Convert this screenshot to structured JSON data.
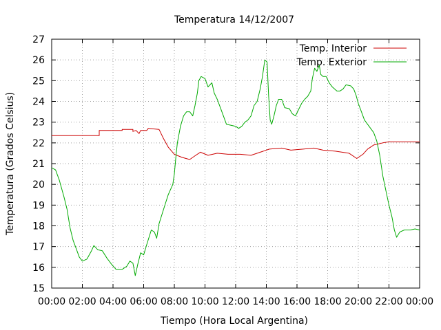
{
  "chart_data": {
    "type": "line",
    "title": "Temperatura 14/12/2007",
    "xlabel": "Tiempo (Hora Local Argentina)",
    "ylabel": "Temperatura (Grados Celsius)",
    "xlim": [
      0,
      24
    ],
    "ylim": [
      15,
      27
    ],
    "x_tick_labels": [
      "00:00",
      "02:00",
      "04:00",
      "06:00",
      "08:00",
      "10:00",
      "12:00",
      "14:00",
      "16:00",
      "18:00",
      "20:00",
      "22:00",
      "00:00"
    ],
    "y_ticks": [
      15,
      16,
      17,
      18,
      19,
      20,
      21,
      22,
      23,
      24,
      25,
      26,
      27
    ],
    "grid": true,
    "legend_position": "top-right",
    "series": [
      {
        "name": "Temp. Interior",
        "color": "#cc0000",
        "points": [
          [
            0,
            22.35
          ],
          [
            3.1,
            22.35
          ],
          [
            3.1,
            22.6
          ],
          [
            4.6,
            22.6
          ],
          [
            4.6,
            22.65
          ],
          [
            5.3,
            22.65
          ],
          [
            5.3,
            22.55
          ],
          [
            5.5,
            22.6
          ],
          [
            5.7,
            22.45
          ],
          [
            5.8,
            22.6
          ],
          [
            6.2,
            22.6
          ],
          [
            6.3,
            22.7
          ],
          [
            7.0,
            22.65
          ],
          [
            7.3,
            22.2
          ],
          [
            7.6,
            21.8
          ],
          [
            8.0,
            21.45
          ],
          [
            8.5,
            21.3
          ],
          [
            9.0,
            21.2
          ],
          [
            9.4,
            21.4
          ],
          [
            9.7,
            21.55
          ],
          [
            10.2,
            21.4
          ],
          [
            10.8,
            21.5
          ],
          [
            11.5,
            21.45
          ],
          [
            12.3,
            21.45
          ],
          [
            13.0,
            21.4
          ],
          [
            13.6,
            21.55
          ],
          [
            14.2,
            21.7
          ],
          [
            15.0,
            21.75
          ],
          [
            15.6,
            21.65
          ],
          [
            16.4,
            21.7
          ],
          [
            17.1,
            21.75
          ],
          [
            17.7,
            21.65
          ],
          [
            18.5,
            21.6
          ],
          [
            19.4,
            21.5
          ],
          [
            19.9,
            21.25
          ],
          [
            20.3,
            21.45
          ],
          [
            20.6,
            21.7
          ],
          [
            21.0,
            21.9
          ],
          [
            21.6,
            22.0
          ],
          [
            22.0,
            22.05
          ],
          [
            24,
            22.05
          ]
        ]
      },
      {
        "name": "Temp. Exterior",
        "color": "#00aa00",
        "points": [
          [
            0,
            20.8
          ],
          [
            0.25,
            20.7
          ],
          [
            0.5,
            20.2
          ],
          [
            0.8,
            19.4
          ],
          [
            1.0,
            18.8
          ],
          [
            1.2,
            17.9
          ],
          [
            1.4,
            17.3
          ],
          [
            1.6,
            16.9
          ],
          [
            1.8,
            16.5
          ],
          [
            2.0,
            16.3
          ],
          [
            2.3,
            16.4
          ],
          [
            2.6,
            16.8
          ],
          [
            2.75,
            17.05
          ],
          [
            3.0,
            16.85
          ],
          [
            3.3,
            16.8
          ],
          [
            3.6,
            16.45
          ],
          [
            3.9,
            16.15
          ],
          [
            4.2,
            15.9
          ],
          [
            4.6,
            15.9
          ],
          [
            4.9,
            16.05
          ],
          [
            5.1,
            16.3
          ],
          [
            5.3,
            16.2
          ],
          [
            5.45,
            15.6
          ],
          [
            5.6,
            16.1
          ],
          [
            5.8,
            16.7
          ],
          [
            6.0,
            16.6
          ],
          [
            6.2,
            17.1
          ],
          [
            6.5,
            17.8
          ],
          [
            6.7,
            17.7
          ],
          [
            6.85,
            17.4
          ],
          [
            7.0,
            18.1
          ],
          [
            7.3,
            18.8
          ],
          [
            7.6,
            19.5
          ],
          [
            7.9,
            20.0
          ],
          [
            8.0,
            20.5
          ],
          [
            8.1,
            21.3
          ],
          [
            8.2,
            22.0
          ],
          [
            8.4,
            22.8
          ],
          [
            8.6,
            23.3
          ],
          [
            8.8,
            23.5
          ],
          [
            9.0,
            23.5
          ],
          [
            9.2,
            23.3
          ],
          [
            9.35,
            23.8
          ],
          [
            9.5,
            24.4
          ],
          [
            9.6,
            25.0
          ],
          [
            9.75,
            25.2
          ],
          [
            10.0,
            25.1
          ],
          [
            10.2,
            24.7
          ],
          [
            10.45,
            24.9
          ],
          [
            10.6,
            24.4
          ],
          [
            10.8,
            24.1
          ],
          [
            11.0,
            23.7
          ],
          [
            11.2,
            23.3
          ],
          [
            11.4,
            22.9
          ],
          [
            11.7,
            22.85
          ],
          [
            12.0,
            22.8
          ],
          [
            12.2,
            22.7
          ],
          [
            12.4,
            22.8
          ],
          [
            12.6,
            23.0
          ],
          [
            12.8,
            23.1
          ],
          [
            13.0,
            23.3
          ],
          [
            13.2,
            23.8
          ],
          [
            13.4,
            24.0
          ],
          [
            13.6,
            24.6
          ],
          [
            13.75,
            25.2
          ],
          [
            13.9,
            26.0
          ],
          [
            14.05,
            25.9
          ],
          [
            14.15,
            24.3
          ],
          [
            14.25,
            23.1
          ],
          [
            14.35,
            22.9
          ],
          [
            14.5,
            23.3
          ],
          [
            14.65,
            23.8
          ],
          [
            14.8,
            24.1
          ],
          [
            15.0,
            24.1
          ],
          [
            15.2,
            23.7
          ],
          [
            15.5,
            23.65
          ],
          [
            15.7,
            23.4
          ],
          [
            15.9,
            23.3
          ],
          [
            16.1,
            23.6
          ],
          [
            16.3,
            23.9
          ],
          [
            16.5,
            24.1
          ],
          [
            16.7,
            24.25
          ],
          [
            16.9,
            24.5
          ],
          [
            17.0,
            25.1
          ],
          [
            17.15,
            25.6
          ],
          [
            17.3,
            25.45
          ],
          [
            17.45,
            25.75
          ],
          [
            17.55,
            25.3
          ],
          [
            17.7,
            25.2
          ],
          [
            17.9,
            25.2
          ],
          [
            18.1,
            24.9
          ],
          [
            18.3,
            24.7
          ],
          [
            18.6,
            24.5
          ],
          [
            18.8,
            24.5
          ],
          [
            19.0,
            24.6
          ],
          [
            19.2,
            24.8
          ],
          [
            19.5,
            24.75
          ],
          [
            19.7,
            24.6
          ],
          [
            19.85,
            24.3
          ],
          [
            20.0,
            23.9
          ],
          [
            20.2,
            23.5
          ],
          [
            20.4,
            23.1
          ],
          [
            20.7,
            22.8
          ],
          [
            21.0,
            22.5
          ],
          [
            21.2,
            22.1
          ],
          [
            21.4,
            21.4
          ],
          [
            21.6,
            20.4
          ],
          [
            21.8,
            19.7
          ],
          [
            22.0,
            19.0
          ],
          [
            22.2,
            18.4
          ],
          [
            22.35,
            17.8
          ],
          [
            22.5,
            17.45
          ],
          [
            22.7,
            17.7
          ],
          [
            23.0,
            17.8
          ],
          [
            23.4,
            17.8
          ],
          [
            23.7,
            17.85
          ],
          [
            24,
            17.8
          ]
        ]
      }
    ]
  }
}
